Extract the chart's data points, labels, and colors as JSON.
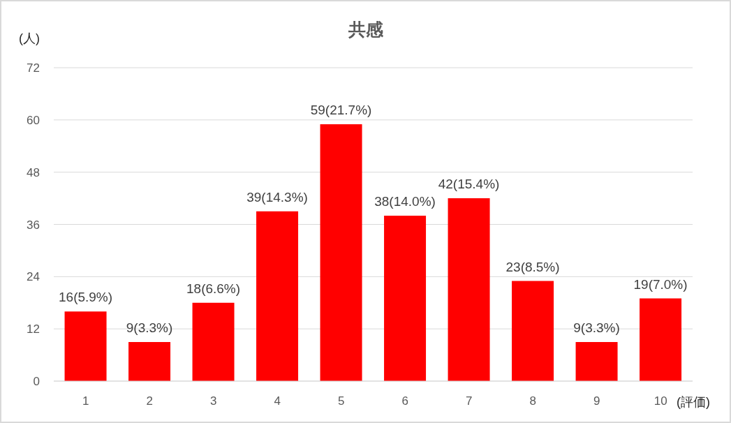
{
  "chart_data": {
    "type": "bar",
    "title": "共感",
    "xlabel": "(評価)",
    "ylabel": "(人)",
    "categories": [
      "1",
      "2",
      "3",
      "4",
      "5",
      "6",
      "7",
      "8",
      "9",
      "10"
    ],
    "values": [
      16,
      9,
      18,
      39,
      59,
      38,
      42,
      23,
      9,
      19
    ],
    "value_labels": [
      "16(5.9%)",
      "9(3.3%)",
      "18(6.6%)",
      "39(14.3%)",
      "59(21.7%)",
      "38(14.0%)",
      "42(15.4%)",
      "23(8.5%)",
      "9(3.3%)",
      "19(7.0%)"
    ],
    "color": "#ff0000",
    "ylim": [
      0,
      72
    ],
    "yticks": [
      0,
      12,
      24,
      36,
      48,
      60,
      72
    ],
    "grid": "y"
  }
}
